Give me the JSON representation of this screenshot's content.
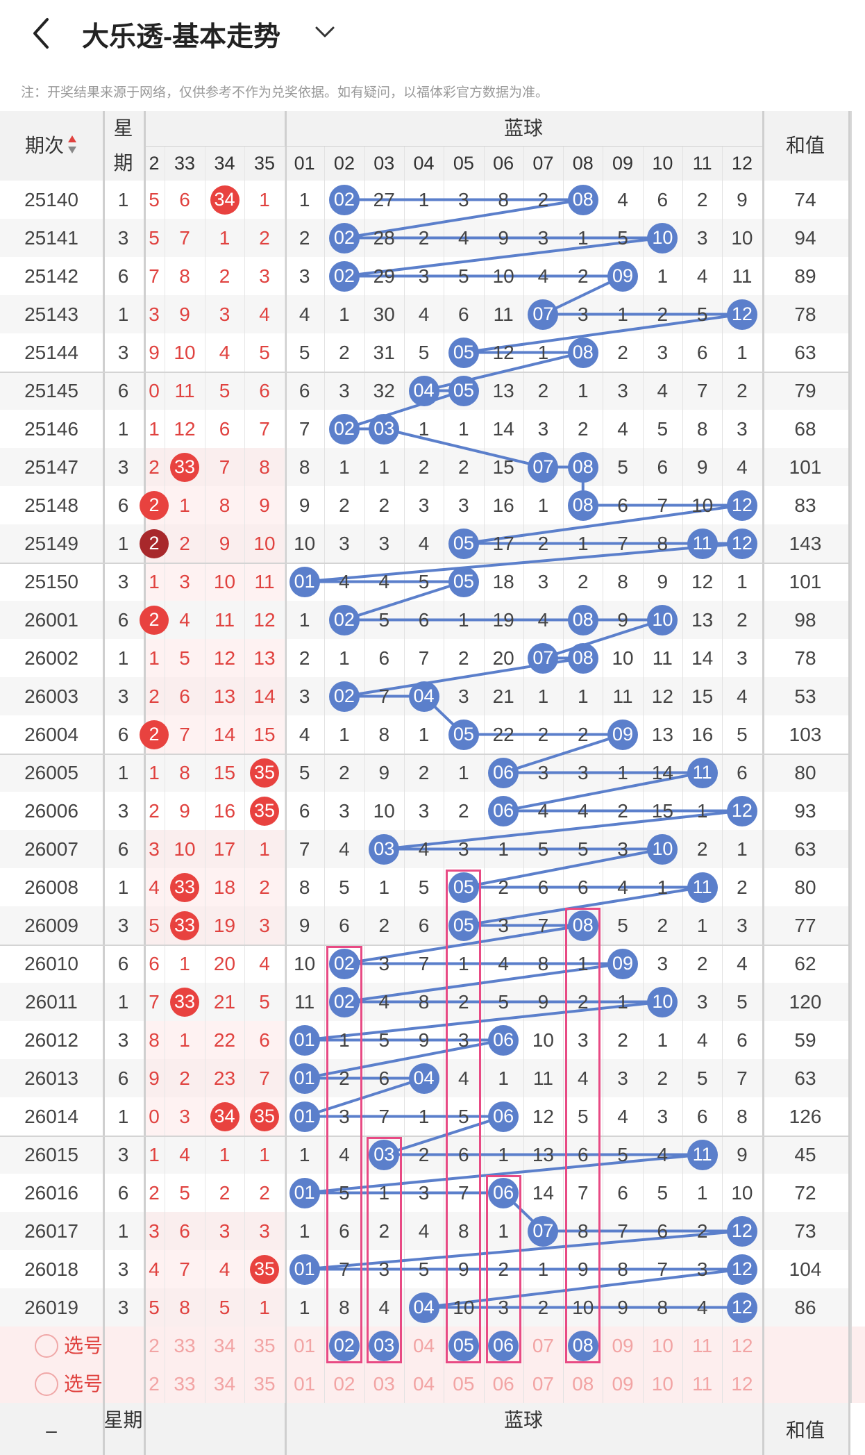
{
  "header": {
    "title": "大乐透-基本走势"
  },
  "notice": "注：开奖结果来源于网络，仅供参考不作为兑奖依据。如有疑问，以福体彩官方数据为准。",
  "columns": {
    "period": "期次",
    "week": "星期",
    "week_part1": "星",
    "week_part2": "期",
    "blue_group": "蓝球",
    "sum": "和值",
    "red_nums": [
      "2",
      "33",
      "34",
      "35"
    ],
    "blue_nums": [
      "01",
      "02",
      "03",
      "04",
      "05",
      "06",
      "07",
      "08",
      "09",
      "10",
      "11",
      "12"
    ]
  },
  "rows": [
    {
      "period": "25140",
      "week": "1",
      "red": [
        "5",
        "6",
        "34",
        "1"
      ],
      "blue": [
        "1",
        "02",
        "27",
        "1",
        "3",
        "8",
        "2",
        "08",
        "4",
        "6",
        "2",
        "9"
      ],
      "sum": "74"
    },
    {
      "period": "25141",
      "week": "3",
      "red": [
        "5",
        "7",
        "1",
        "2"
      ],
      "blue": [
        "2",
        "02",
        "28",
        "2",
        "4",
        "9",
        "3",
        "1",
        "5",
        "10",
        "3",
        "10"
      ],
      "sum": "94"
    },
    {
      "period": "25142",
      "week": "6",
      "red": [
        "7",
        "8",
        "2",
        "3"
      ],
      "blue": [
        "3",
        "02",
        "29",
        "3",
        "5",
        "10",
        "4",
        "2",
        "09",
        "1",
        "4",
        "11"
      ],
      "sum": "89"
    },
    {
      "period": "25143",
      "week": "1",
      "red": [
        "3",
        "9",
        "3",
        "4"
      ],
      "blue": [
        "4",
        "1",
        "30",
        "4",
        "6",
        "11",
        "07",
        "3",
        "1",
        "2",
        "5",
        "12"
      ],
      "sum": "78"
    },
    {
      "period": "25144",
      "week": "3",
      "red": [
        "9",
        "10",
        "4",
        "5"
      ],
      "blue": [
        "5",
        "2",
        "31",
        "5",
        "05",
        "12",
        "1",
        "08",
        "2",
        "3",
        "6",
        "1"
      ],
      "sum": "63"
    },
    {
      "period": "25145",
      "week": "6",
      "red": [
        "0",
        "11",
        "5",
        "6"
      ],
      "blue": [
        "6",
        "3",
        "32",
        "04",
        "05",
        "13",
        "2",
        "1",
        "3",
        "4",
        "7",
        "2"
      ],
      "sum": "79"
    },
    {
      "period": "25146",
      "week": "1",
      "red": [
        "1",
        "12",
        "6",
        "7"
      ],
      "blue": [
        "7",
        "02",
        "03",
        "1",
        "1",
        "14",
        "3",
        "2",
        "4",
        "5",
        "8",
        "3"
      ],
      "sum": "68"
    },
    {
      "period": "25147",
      "week": "3",
      "red": [
        "2",
        "33",
        "7",
        "8"
      ],
      "blue": [
        "8",
        "1",
        "1",
        "2",
        "2",
        "15",
        "07",
        "08",
        "5",
        "6",
        "9",
        "4"
      ],
      "sum": "101"
    },
    {
      "period": "25148",
      "week": "6",
      "red": [
        "2",
        "1",
        "8",
        "9"
      ],
      "blue": [
        "9",
        "2",
        "2",
        "3",
        "3",
        "16",
        "1",
        "08",
        "6",
        "7",
        "10",
        "12"
      ],
      "sum": "83"
    },
    {
      "period": "25149",
      "week": "1",
      "red": [
        "2",
        "2",
        "9",
        "10"
      ],
      "blue": [
        "10",
        "3",
        "3",
        "4",
        "05",
        "17",
        "2",
        "1",
        "7",
        "8",
        "11",
        "12"
      ],
      "sum": "143"
    },
    {
      "period": "25150",
      "week": "3",
      "red": [
        "1",
        "3",
        "10",
        "11"
      ],
      "blue": [
        "01",
        "4",
        "4",
        "5",
        "05",
        "18",
        "3",
        "2",
        "8",
        "9",
        "12",
        "1"
      ],
      "sum": "101"
    },
    {
      "period": "26001",
      "week": "6",
      "red": [
        "2",
        "4",
        "11",
        "12"
      ],
      "blue": [
        "1",
        "02",
        "5",
        "6",
        "1",
        "19",
        "4",
        "08",
        "9",
        "10",
        "13",
        "2"
      ],
      "sum": "98"
    },
    {
      "period": "26002",
      "week": "1",
      "red": [
        "1",
        "5",
        "12",
        "13"
      ],
      "blue": [
        "2",
        "1",
        "6",
        "7",
        "2",
        "20",
        "07",
        "08",
        "10",
        "11",
        "14",
        "3"
      ],
      "sum": "78"
    },
    {
      "period": "26003",
      "week": "3",
      "red": [
        "2",
        "6",
        "13",
        "14"
      ],
      "blue": [
        "3",
        "02",
        "7",
        "04",
        "3",
        "21",
        "1",
        "1",
        "11",
        "12",
        "15",
        "4"
      ],
      "sum": "53"
    },
    {
      "period": "26004",
      "week": "6",
      "red": [
        "2",
        "7",
        "14",
        "15"
      ],
      "blue": [
        "4",
        "1",
        "8",
        "1",
        "05",
        "22",
        "2",
        "2",
        "09",
        "13",
        "16",
        "5"
      ],
      "sum": "103"
    },
    {
      "period": "26005",
      "week": "1",
      "red": [
        "1",
        "8",
        "15",
        "35"
      ],
      "blue": [
        "5",
        "2",
        "9",
        "2",
        "1",
        "06",
        "3",
        "3",
        "1",
        "14",
        "11",
        "6"
      ],
      "sum": "80"
    },
    {
      "period": "26006",
      "week": "3",
      "red": [
        "2",
        "9",
        "16",
        "35"
      ],
      "blue": [
        "6",
        "3",
        "10",
        "3",
        "2",
        "06",
        "4",
        "4",
        "2",
        "15",
        "1",
        "12"
      ],
      "sum": "93"
    },
    {
      "period": "26007",
      "week": "6",
      "red": [
        "3",
        "10",
        "17",
        "1"
      ],
      "blue": [
        "7",
        "4",
        "03",
        "4",
        "3",
        "1",
        "5",
        "5",
        "3",
        "10",
        "2",
        "1"
      ],
      "sum": "63"
    },
    {
      "period": "26008",
      "week": "1",
      "red": [
        "4",
        "33",
        "18",
        "2"
      ],
      "blue": [
        "8",
        "5",
        "1",
        "5",
        "05",
        "2",
        "6",
        "6",
        "4",
        "1",
        "11",
        "2"
      ],
      "sum": "80"
    },
    {
      "period": "26009",
      "week": "3",
      "red": [
        "5",
        "33",
        "19",
        "3"
      ],
      "blue": [
        "9",
        "6",
        "2",
        "6",
        "05",
        "3",
        "7",
        "08",
        "5",
        "2",
        "1",
        "3"
      ],
      "sum": "77"
    },
    {
      "period": "26010",
      "week": "6",
      "red": [
        "6",
        "1",
        "20",
        "4"
      ],
      "blue": [
        "10",
        "02",
        "3",
        "7",
        "1",
        "4",
        "8",
        "1",
        "09",
        "3",
        "2",
        "4"
      ],
      "sum": "62"
    },
    {
      "period": "26011",
      "week": "1",
      "red": [
        "7",
        "33",
        "21",
        "5"
      ],
      "blue": [
        "11",
        "02",
        "4",
        "8",
        "2",
        "5",
        "9",
        "2",
        "1",
        "10",
        "3",
        "5"
      ],
      "sum": "120"
    },
    {
      "period": "26012",
      "week": "3",
      "red": [
        "8",
        "1",
        "22",
        "6"
      ],
      "blue": [
        "01",
        "1",
        "5",
        "9",
        "3",
        "06",
        "10",
        "3",
        "2",
        "1",
        "4",
        "6"
      ],
      "sum": "59"
    },
    {
      "period": "26013",
      "week": "6",
      "red": [
        "9",
        "2",
        "23",
        "7"
      ],
      "blue": [
        "01",
        "2",
        "6",
        "04",
        "4",
        "1",
        "11",
        "4",
        "3",
        "2",
        "5",
        "7"
      ],
      "sum": "63"
    },
    {
      "period": "26014",
      "week": "1",
      "red": [
        "0",
        "3",
        "34",
        "35"
      ],
      "blue": [
        "01",
        "3",
        "7",
        "1",
        "5",
        "06",
        "12",
        "5",
        "4",
        "3",
        "6",
        "8"
      ],
      "sum": "126"
    },
    {
      "period": "26015",
      "week": "3",
      "red": [
        "1",
        "4",
        "1",
        "1"
      ],
      "blue": [
        "1",
        "4",
        "03",
        "2",
        "6",
        "1",
        "13",
        "6",
        "5",
        "4",
        "11",
        "9"
      ],
      "sum": "45"
    },
    {
      "period": "26016",
      "week": "6",
      "red": [
        "2",
        "5",
        "2",
        "2"
      ],
      "blue": [
        "01",
        "5",
        "1",
        "3",
        "7",
        "06",
        "14",
        "7",
        "6",
        "5",
        "1",
        "10"
      ],
      "sum": "72"
    },
    {
      "period": "26017",
      "week": "1",
      "red": [
        "3",
        "6",
        "3",
        "3"
      ],
      "blue": [
        "1",
        "6",
        "2",
        "4",
        "8",
        "1",
        "07",
        "8",
        "7",
        "6",
        "2",
        "12"
      ],
      "sum": "73"
    },
    {
      "period": "26018",
      "week": "3",
      "red": [
        "4",
        "7",
        "4",
        "35"
      ],
      "blue": [
        "01",
        "7",
        "3",
        "5",
        "9",
        "2",
        "1",
        "9",
        "8",
        "7",
        "3",
        "12"
      ],
      "sum": "104"
    },
    {
      "period": "26019",
      "week": "3",
      "red": [
        "5",
        "8",
        "5",
        "1"
      ],
      "blue": [
        "1",
        "8",
        "4",
        "04",
        "10",
        "3",
        "2",
        "10",
        "9",
        "8",
        "4",
        "12"
      ],
      "sum": "86"
    }
  ],
  "select_rows": [
    {
      "label": "选号",
      "red": [
        "2",
        "33",
        "34",
        "35"
      ],
      "blue": [
        "01",
        "02",
        "03",
        "04",
        "05",
        "06",
        "07",
        "08",
        "09",
        "10",
        "11",
        "12"
      ]
    },
    {
      "label": "选号",
      "red": [
        "2",
        "33",
        "34",
        "35"
      ],
      "blue": [
        "01",
        "02",
        "03",
        "04",
        "05",
        "06",
        "07",
        "08",
        "09",
        "10",
        "11",
        "12"
      ]
    }
  ],
  "selected_blue": [
    "02",
    "03",
    "05",
    "06",
    "08"
  ],
  "footer": {
    "left": "–",
    "week": "星期",
    "blue_group": "蓝球",
    "sum": "和值"
  },
  "colors": {
    "blue_ball": "#5b7fcb",
    "red_ball": "#e8423f",
    "red_ball_dark": "#a8282b",
    "highlight_box": "#e84a84",
    "header_bg": "#f2f2f2"
  }
}
